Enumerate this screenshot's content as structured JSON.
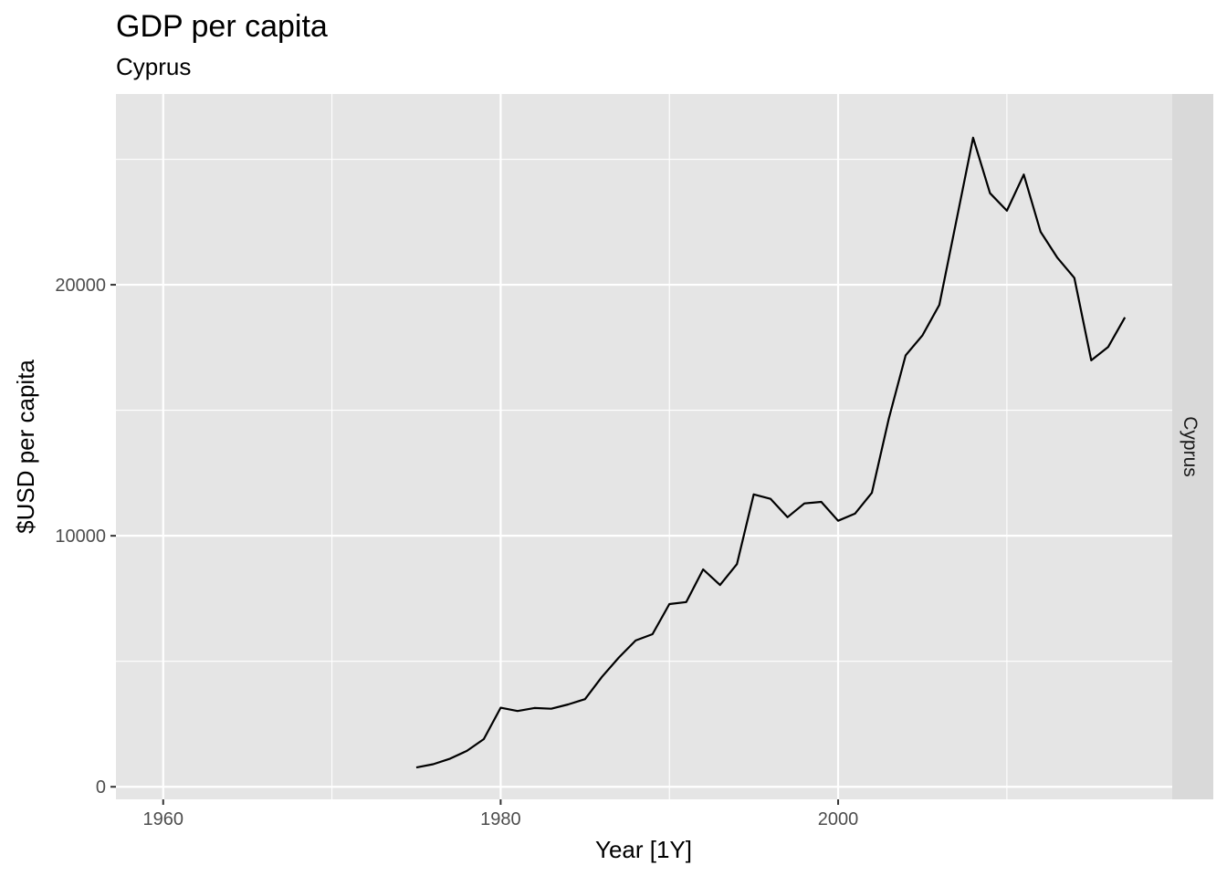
{
  "chart_data": {
    "type": "line",
    "title": "GDP per capita",
    "subtitle": "Cyprus",
    "xlabel": "Year [1Y]",
    "ylabel": "$USD per capita",
    "facet_label": "Cyprus",
    "xlim": [
      1957.2,
      2019.8
    ],
    "ylim": [
      -500,
      27600
    ],
    "x_ticks": [
      1960,
      1980,
      2000
    ],
    "x_tick_labels": [
      "1960",
      "1980",
      "2000"
    ],
    "x_minor_ticks": [
      1970,
      1990,
      2010
    ],
    "y_ticks": [
      0,
      10000,
      20000
    ],
    "y_tick_labels": [
      "0",
      "10000",
      "20000"
    ],
    "y_minor_ticks": [
      5000,
      15000,
      25000
    ],
    "grid": true,
    "colors": {
      "panel_background": "#e5e5e5",
      "grid": "#ffffff",
      "line": "#000000",
      "strip_background": "#d9d9d9"
    },
    "series": [
      {
        "x": [
          1975,
          1976,
          1977,
          1978,
          1979,
          1980,
          1981,
          1982,
          1983,
          1984,
          1985,
          1986,
          1987,
          1988,
          1989,
          1990,
          1991,
          1992,
          1993,
          1994,
          1995,
          1996,
          1997,
          1998,
          1999,
          2000,
          2001,
          2002,
          2003,
          2004,
          2005,
          2006,
          2007,
          2008,
          2009,
          2010,
          2011,
          2012,
          2013,
          2014,
          2015,
          2016,
          2017
        ],
        "y": [
          770,
          900,
          1120,
          1430,
          1900,
          3150,
          3020,
          3140,
          3110,
          3280,
          3490,
          4380,
          5150,
          5830,
          6080,
          7280,
          7360,
          8660,
          8040,
          8870,
          11650,
          11470,
          10740,
          11290,
          11350,
          10600,
          10880,
          11710,
          14660,
          17190,
          17990,
          19200,
          22520,
          25860,
          23650,
          22950,
          24390,
          22110,
          21070,
          20270,
          16990,
          17520,
          18700
        ]
      }
    ]
  }
}
